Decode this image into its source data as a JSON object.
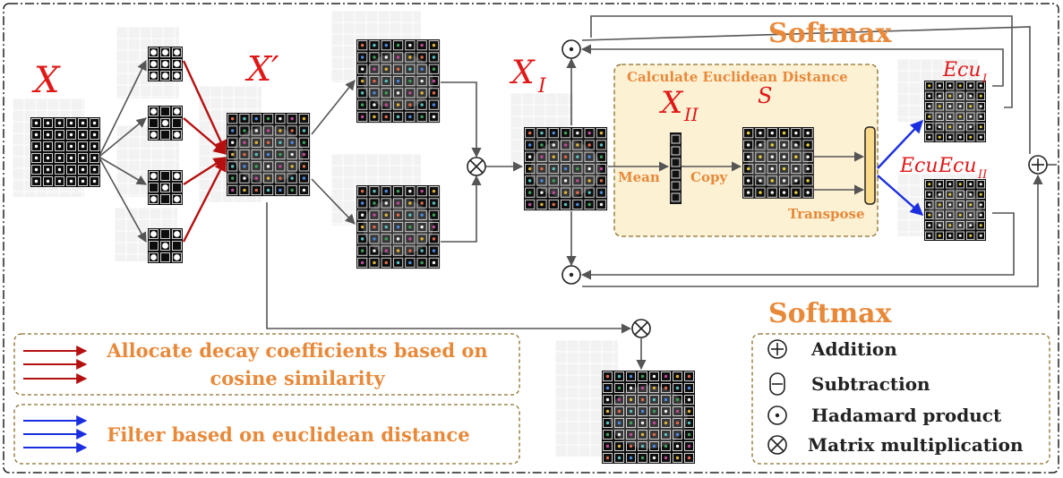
{
  "labels": {
    "x": "X",
    "x_prime": "X′",
    "x_one": "X",
    "x_one_sub": "I",
    "x_two": "X",
    "x_two_sub": "II",
    "s": "S",
    "ecu": "Ecu",
    "ecu_one": "Ecu",
    "ecu_one_sub": "I",
    "ecu_two": "Ecu",
    "ecu_two_sub": "II",
    "softmax_top": "Softmax",
    "softmax_bottom": "Softmax",
    "calc_euclid": "Calculate Euclidean Distance",
    "mean": "Mean",
    "copy": "Copy",
    "transpose": "Transpose"
  },
  "legend_left": {
    "cosine_line1": "Allocate decay coefficients based on",
    "cosine_line2": "cosine similarity",
    "euclid": "Filter based on euclidean distance"
  },
  "legend_right": {
    "addition": "Addition",
    "subtraction": "Subtraction",
    "hadamard": "Hadamard product",
    "matmul": "Matrix multiplication"
  },
  "colors": {
    "math_red": "#e01818",
    "accent_orange": "#e8893a",
    "cosine_arrow": "#b51010",
    "euclid_arrow": "#1a2ee0",
    "panel_fill": "#fdf1d4",
    "panel_border": "#8a6d2a"
  }
}
